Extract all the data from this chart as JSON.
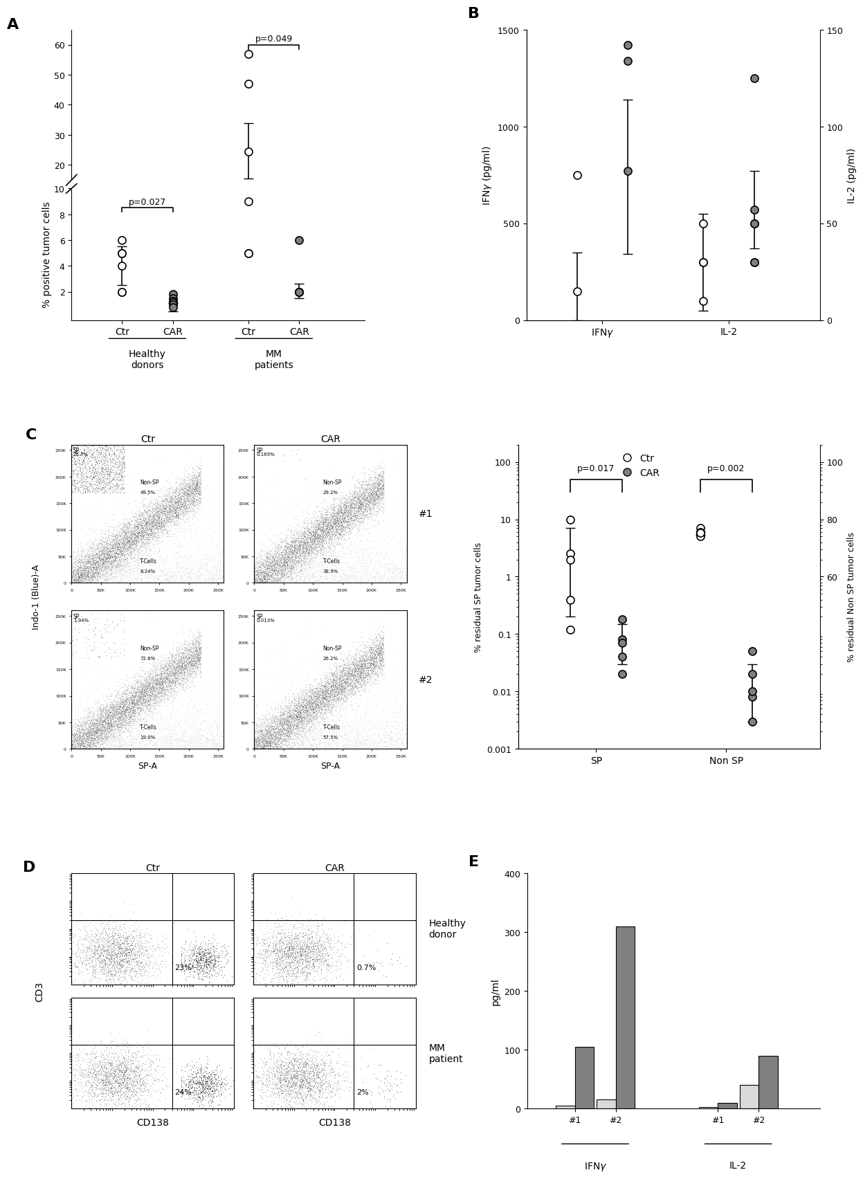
{
  "panel_A": {
    "label": "A",
    "ylabel": "% positive tumor cells",
    "ctr_healthy_dots": [
      6.0,
      5.0,
      5.0,
      2.0,
      2.0
    ],
    "ctr_healthy_mean": 4.0,
    "ctr_healthy_err_low": 1.5,
    "ctr_healthy_err_high": 1.5,
    "car_healthy_dots": [
      1.8,
      1.5,
      1.3,
      1.2,
      1.0
    ],
    "car_healthy_mean": 0.8,
    "car_healthy_err_low": 0.3,
    "car_healthy_err_high": 0.3,
    "ctr_mm_dots": [
      57.0,
      47.0,
      9.0,
      5.0,
      5.0
    ],
    "ctr_mm_mean": 24.5,
    "ctr_mm_err_low": 9.0,
    "ctr_mm_err_high": 9.5,
    "car_mm_dots": [
      6.0,
      2.0,
      2.0,
      2.0,
      2.0
    ],
    "car_mm_mean": 2.0,
    "car_mm_err_low": 0.5,
    "car_mm_err_high": 0.6,
    "pvalue_healthy": "p=0.027",
    "pvalue_mm": "p=0.049"
  },
  "panel_B": {
    "label": "B",
    "ylabel_left": "IFNγ (pg/ml)",
    "ylabel_right": "IL-2 (pg/ml)",
    "ifng_ctr_dots": [
      750.0
    ],
    "ifng_ctr_mean": 150.0,
    "ifng_ctr_err_low": 150.0,
    "ifng_ctr_err_high": 200.0,
    "ifng_car_dots": [
      1420.0,
      1340.0
    ],
    "ifng_car_mean": 770.0,
    "ifng_car_err_low": 430.0,
    "ifng_car_err_high": 370.0,
    "il2_ctr_dots": [
      50.0,
      30.0,
      10.0
    ],
    "il2_ctr_mean": 30.0,
    "il2_ctr_err_low": 25.0,
    "il2_ctr_err_high": 25.0,
    "il2_car_dots": [
      125.0,
      50.0,
      50.0,
      30.0,
      30.0
    ],
    "il2_car_mean": 57.0,
    "il2_car_err_low": 20.0,
    "il2_car_err_high": 20.0,
    "ylim_left": [
      0,
      1500
    ],
    "ylim_right": [
      0,
      150
    ]
  },
  "panel_C": {
    "label": "C",
    "xlabel": "SP-A",
    "ylabel": "Indo-1 (Blue)-A",
    "col_labels": [
      "Ctr",
      "CAR"
    ],
    "pvalue_sp": "p=0.017",
    "pvalue_nonsp": "p=0.002",
    "sp_ctr_dots": [
      10.0,
      2.5,
      0.4,
      0.12
    ],
    "sp_ctr_mean": 2.0,
    "sp_ctr_err_low": 1.8,
    "sp_ctr_err_high": 5.0,
    "sp_car_dots": [
      0.18,
      0.08,
      0.04,
      0.02
    ],
    "sp_car_mean": 0.07,
    "sp_car_err_low": 0.04,
    "sp_car_err_high": 0.08,
    "nonsp_ctr_dots": [
      7.0,
      6.0,
      5.5,
      5.0
    ],
    "nonsp_ctr_mean": 5.8,
    "nonsp_ctr_err_low": 0.4,
    "nonsp_ctr_err_high": 0.4,
    "nonsp_car_dots": [
      0.05,
      0.02,
      0.008,
      0.003
    ],
    "nonsp_car_mean": 0.01,
    "nonsp_car_err_low": 0.007,
    "nonsp_car_err_high": 0.02,
    "scatter_ylabel_left": "% residual SP tumor cells",
    "scatter_ylabel_right": "% residual Non SP tumor cells",
    "legend_ctr": "Ctr",
    "legend_car": "CAR"
  },
  "panel_D": {
    "label": "D",
    "xlabel": "CD138",
    "ylabel": "CD3",
    "percentages": {
      "healthy_ctr": "23%",
      "healthy_car": "0.7%",
      "mm_ctr": "24%",
      "mm_car": "2%"
    }
  },
  "panel_E": {
    "label": "E",
    "ylabel": "pg/ml",
    "ctr_values": [
      5.0,
      15.0,
      3.0,
      40.0
    ],
    "car_values": [
      105.0,
      310.0,
      10.0,
      90.0
    ],
    "ylim": [
      0,
      400
    ],
    "yticks": [
      0,
      100,
      200,
      300,
      400
    ],
    "bar_color_ctr": "#d9d9d9",
    "bar_color_car": "#808080"
  },
  "open_dot_color": "white",
  "filled_dot_color": "#808080",
  "dot_edge_color": "#000000"
}
